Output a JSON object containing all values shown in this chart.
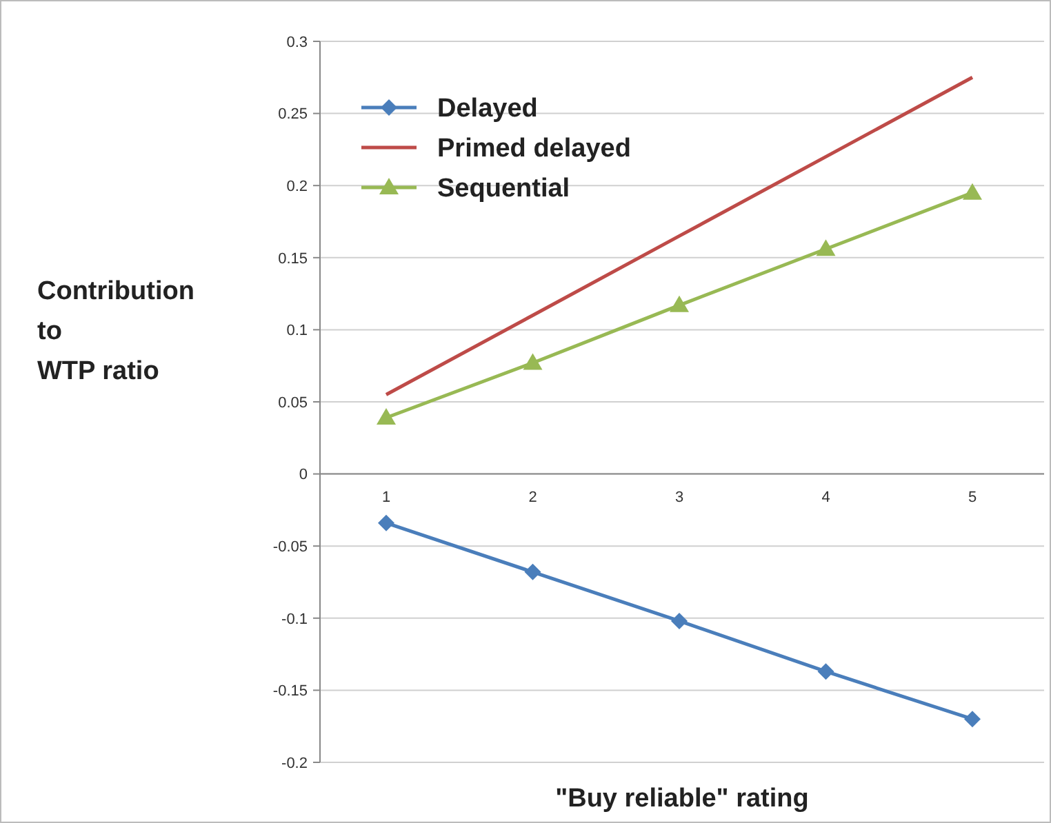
{
  "chart_data": {
    "type": "line",
    "xlabel": "\"Buy reliable\" rating",
    "ylabel": "Contribution\nto\nWTP ratio",
    "categories": [
      "1",
      "2",
      "3",
      "4",
      "5"
    ],
    "series": [
      {
        "name": "Delayed",
        "color": "#4a7ebb",
        "marker": "diamond",
        "values": [
          -0.034,
          -0.068,
          -0.102,
          -0.137,
          -0.17
        ]
      },
      {
        "name": "Primed delayed",
        "color": "#be4b48",
        "marker": "none",
        "values": [
          0.055,
          0.11,
          0.165,
          0.22,
          0.275
        ]
      },
      {
        "name": "Sequential",
        "color": "#98b954",
        "marker": "triangle",
        "values": [
          0.039,
          0.077,
          0.117,
          0.156,
          0.195
        ]
      }
    ],
    "ylim": [
      -0.2,
      0.3
    ],
    "yticks": [
      -0.2,
      -0.15,
      -0.1,
      -0.05,
      0,
      0.05,
      0.1,
      0.15,
      0.2,
      0.25,
      0.3
    ],
    "grid": "y",
    "legend": "top left"
  }
}
